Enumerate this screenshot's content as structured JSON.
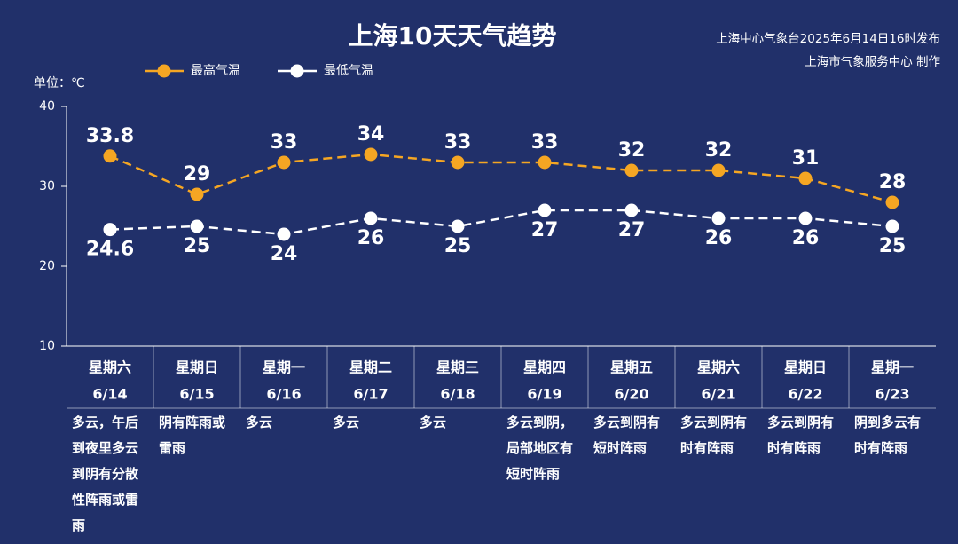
{
  "chart_data": {
    "type": "line",
    "title": "上海10天天气趋势",
    "source": [
      "上海中心气象台2025年6月14日16时发布",
      "上海市气象服务中心 制作"
    ],
    "y_label": "单位：℃",
    "categories": [
      "星期六",
      "星期日",
      "星期一",
      "星期二",
      "星期三",
      "星期四",
      "星期五",
      "星期六",
      "星期日",
      "星期一"
    ],
    "dates": [
      "6/14",
      "6/15",
      "6/16",
      "6/17",
      "6/18",
      "6/19",
      "6/20",
      "6/21",
      "6/22",
      "6/23"
    ],
    "weather": [
      "多云，午后到夜里多云到阴有分散性阵雨或雷雨",
      "阴有阵雨或雷雨",
      "多云",
      "多云",
      "多云",
      "多云到阴，局部地区有短时阵雨",
      "多云到阴有短时阵雨",
      "多云到阴有时有阵雨",
      "多云到阴有时有阵雨",
      "阴到多云有时有阵雨"
    ],
    "series": [
      {
        "name": "最高气温",
        "color": "#f5a623",
        "values": [
          33.8,
          29,
          33,
          34,
          33,
          33,
          32,
          32,
          31,
          28
        ]
      },
      {
        "name": "最低气温",
        "color": "#ffffff",
        "values": [
          24.6,
          25,
          24,
          26,
          25,
          27,
          27,
          26,
          26,
          25
        ]
      }
    ],
    "ylim": [
      10,
      40
    ],
    "yticks": [
      10,
      20,
      30,
      40
    ]
  }
}
